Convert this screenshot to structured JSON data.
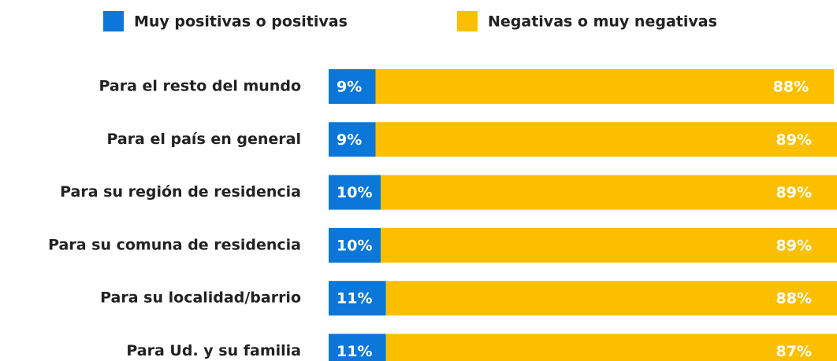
{
  "chart_data": {
    "type": "stacked-barh",
    "categories": [
      "Para el resto del mundo",
      "Para el país en general",
      "Para su región de residencia",
      "Para su comuna de residencia",
      "Para su localidad/barrio",
      "Para Ud. y su familia"
    ],
    "series": [
      {
        "name": "Muy positivas o positivas",
        "color": "#0a77d9",
        "values": [
          9,
          9,
          10,
          10,
          11,
          11
        ],
        "value_labels": [
          "9%",
          "9%",
          "10%",
          "10%",
          "11%",
          "11%"
        ]
      },
      {
        "name": "Negativas o muy negativas",
        "color": "#fcbf00",
        "values": [
          88,
          89,
          89,
          89,
          88,
          87
        ],
        "value_labels": [
          "88%",
          "89%",
          "89%",
          "89%",
          "88%",
          "87%"
        ]
      }
    ],
    "xlim": [
      0,
      100
    ],
    "legend": "top"
  }
}
